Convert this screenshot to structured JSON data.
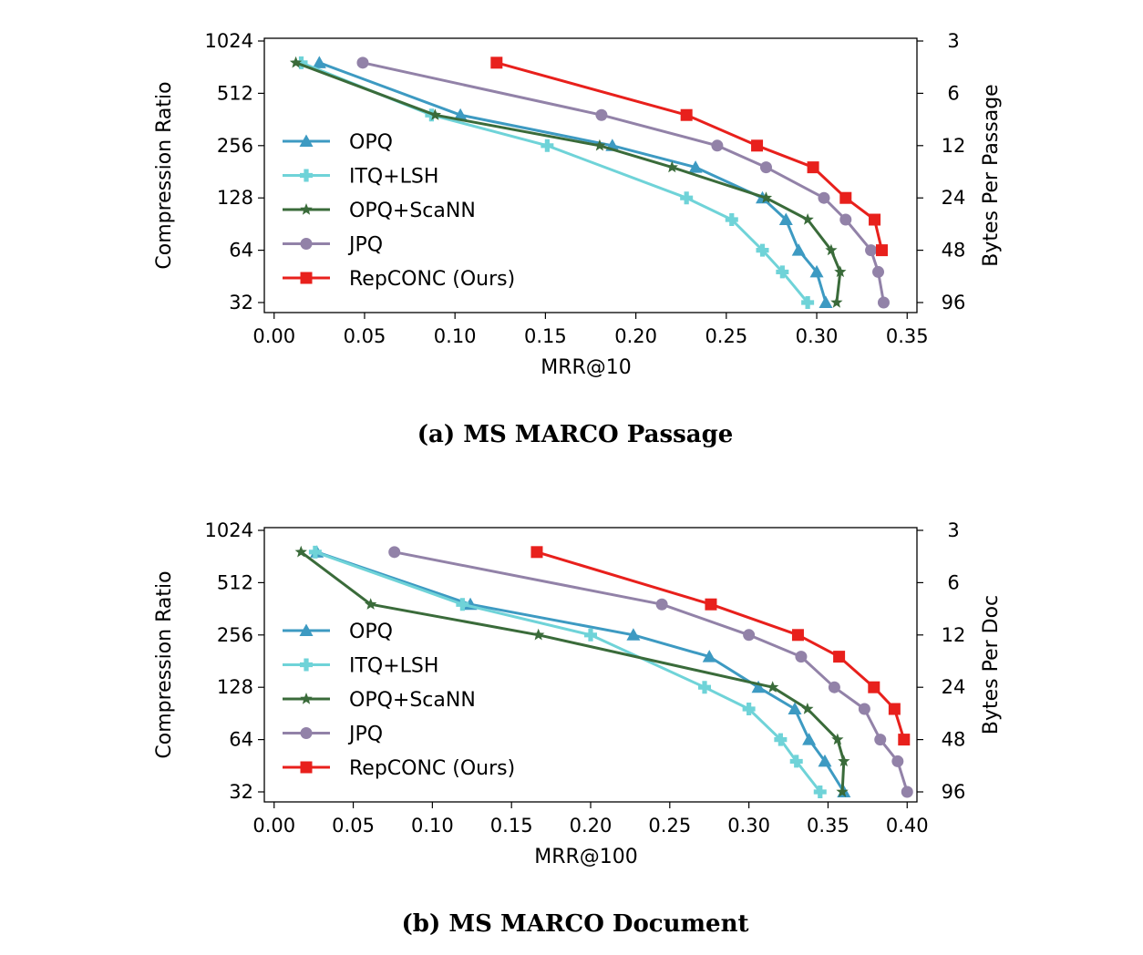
{
  "colors": {
    "OPQ": "#3d9ac2",
    "ITQ+LSH": "#6fd3d8",
    "OPQ+ScaNN": "#3a6b3a",
    "JPQ": "#9282a8",
    "RepCONC (Ours)": "#e8201c"
  },
  "markers": {
    "OPQ": "triangle",
    "ITQ+LSH": "plus",
    "OPQ+ScaNN": "star",
    "JPQ": "circle",
    "RepCONC (Ours)": "square"
  },
  "chart_data": [
    {
      "type": "line",
      "caption": "(a) MS MARCO Passage",
      "xlabel": "MRR@10",
      "ylabel": "Compression Ratio",
      "ylabel_right": "Bytes Per Passage",
      "xlim": [
        0,
        0.35
      ],
      "xticks": [
        "0.00",
        "0.05",
        "0.10",
        "0.15",
        "0.20",
        "0.25",
        "0.30",
        "0.35"
      ],
      "yscale": "log2",
      "ylim": [
        32,
        1024
      ],
      "yticks": [
        "1024",
        "512",
        "256",
        "128",
        "64",
        "32"
      ],
      "yticks_right": [
        "3",
        "6",
        "12",
        "24",
        "48",
        "96"
      ],
      "legend": "center-left",
      "series": [
        {
          "name": "OPQ",
          "x": [
            0.025,
            0.103,
            0.187,
            0.233,
            0.27,
            0.283,
            0.29,
            0.3,
            0.305
          ],
          "y": [
            768,
            384,
            256,
            192,
            128,
            96,
            64,
            48,
            32
          ]
        },
        {
          "name": "ITQ+LSH",
          "x": [
            0.015,
            0.087,
            0.151,
            0.228,
            0.253,
            0.27,
            0.281,
            0.295
          ],
          "y": [
            768,
            384,
            256,
            128,
            96,
            64,
            48,
            32
          ]
        },
        {
          "name": "OPQ+ScaNN",
          "x": [
            0.012,
            0.089,
            0.18,
            0.22,
            0.272,
            0.295,
            0.308,
            0.313,
            0.311
          ],
          "y": [
            768,
            384,
            256,
            192,
            128,
            96,
            64,
            48,
            32
          ]
        },
        {
          "name": "JPQ",
          "x": [
            0.049,
            0.181,
            0.245,
            0.272,
            0.304,
            0.316,
            0.33,
            0.334,
            0.337
          ],
          "y": [
            768,
            384,
            256,
            192,
            128,
            96,
            64,
            48,
            32
          ]
        },
        {
          "name": "RepCONC (Ours)",
          "x": [
            0.123,
            0.228,
            0.267,
            0.298,
            0.316,
            0.332,
            0.336
          ],
          "y": [
            768,
            384,
            256,
            192,
            128,
            96,
            64
          ]
        }
      ]
    },
    {
      "type": "line",
      "caption": "(b) MS MARCO Document",
      "xlabel": "MRR@100",
      "ylabel": "Compression Ratio",
      "ylabel_right": "Bytes Per Doc",
      "xlim": [
        0,
        0.4
      ],
      "xticks": [
        "0.00",
        "0.05",
        "0.10",
        "0.15",
        "0.20",
        "0.25",
        "0.30",
        "0.35",
        "0.40"
      ],
      "yscale": "log2",
      "ylim": [
        32,
        1024
      ],
      "yticks": [
        "1024",
        "512",
        "256",
        "128",
        "64",
        "32"
      ],
      "yticks_right": [
        "3",
        "6",
        "12",
        "24",
        "48",
        "96"
      ],
      "legend": "center-left",
      "series": [
        {
          "name": "OPQ",
          "x": [
            0.027,
            0.124,
            0.227,
            0.275,
            0.306,
            0.329,
            0.338,
            0.348,
            0.36
          ],
          "y": [
            768,
            384,
            256,
            192,
            128,
            96,
            64,
            48,
            32
          ]
        },
        {
          "name": "ITQ+LSH",
          "x": [
            0.026,
            0.119,
            0.2,
            0.272,
            0.3,
            0.32,
            0.33,
            0.345
          ],
          "y": [
            768,
            384,
            256,
            128,
            96,
            64,
            48,
            32
          ]
        },
        {
          "name": "OPQ+ScaNN",
          "x": [
            0.017,
            0.061,
            0.167,
            0.315,
            0.337,
            0.356,
            0.36,
            0.359
          ],
          "y": [
            768,
            384,
            256,
            128,
            96,
            64,
            48,
            32
          ]
        },
        {
          "name": "JPQ",
          "x": [
            0.076,
            0.245,
            0.3,
            0.333,
            0.354,
            0.373,
            0.383,
            0.394,
            0.4
          ],
          "y": [
            768,
            384,
            256,
            192,
            128,
            96,
            64,
            48,
            32
          ]
        },
        {
          "name": "RepCONC (Ours)",
          "x": [
            0.166,
            0.276,
            0.331,
            0.357,
            0.379,
            0.392,
            0.398
          ],
          "y": [
            768,
            384,
            256,
            192,
            128,
            96,
            64
          ]
        }
      ]
    }
  ]
}
